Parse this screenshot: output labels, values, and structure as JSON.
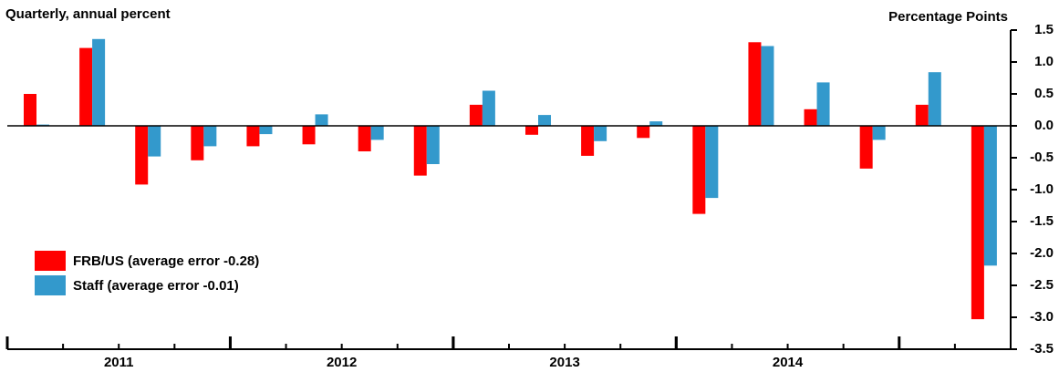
{
  "chart_data": {
    "type": "bar",
    "left_label": "Quarterly, annual percent",
    "right_label": "Percentage Points",
    "categories": [
      null,
      null,
      null,
      null,
      null,
      null,
      null,
      null,
      null,
      null,
      null,
      null,
      null,
      null,
      null,
      null,
      null,
      null
    ],
    "groups": [
      {
        "label": "2011",
        "span": 4
      },
      {
        "label": "2012",
        "span": 4
      },
      {
        "label": "2013",
        "span": 4
      },
      {
        "label": "2014",
        "span": 4
      }
    ],
    "series": [
      {
        "name": "FRB/US (average error -0.28)",
        "color": "#ff0000",
        "values": [
          0.5,
          1.22,
          -0.92,
          -0.54,
          -0.32,
          -0.29,
          -0.4,
          -0.78,
          0.33,
          -0.14,
          -0.47,
          -0.19,
          -1.38,
          1.31,
          0.26,
          -0.67,
          0.33,
          -3.03
        ]
      },
      {
        "name": "Staff (average error -0.01)",
        "color": "#3399cc",
        "values": [
          0.02,
          1.36,
          -0.48,
          -0.32,
          -0.13,
          0.18,
          -0.22,
          -0.6,
          0.55,
          0.17,
          -0.24,
          0.07,
          -1.13,
          1.25,
          0.68,
          -0.22,
          0.84,
          -2.19
        ]
      }
    ],
    "ylim": [
      -3.5,
      1.5
    ],
    "yticks": [
      {
        "value": 1.5,
        "label": "1.5"
      },
      {
        "value": 1,
        "label": "1.0"
      },
      {
        "value": 0.5,
        "label": "0.5"
      },
      {
        "value": 0,
        "label": "0.0"
      },
      {
        "value": -0.5,
        "label": "-0.5"
      },
      {
        "value": -1,
        "label": "-1.0"
      },
      {
        "value": -1.5,
        "label": "-1.5"
      },
      {
        "value": -2,
        "label": "-2.0"
      },
      {
        "value": -2.5,
        "label": "-2.5"
      },
      {
        "value": -3,
        "label": "-3.0"
      },
      {
        "value": -3.5,
        "label": "-3.5"
      }
    ]
  }
}
